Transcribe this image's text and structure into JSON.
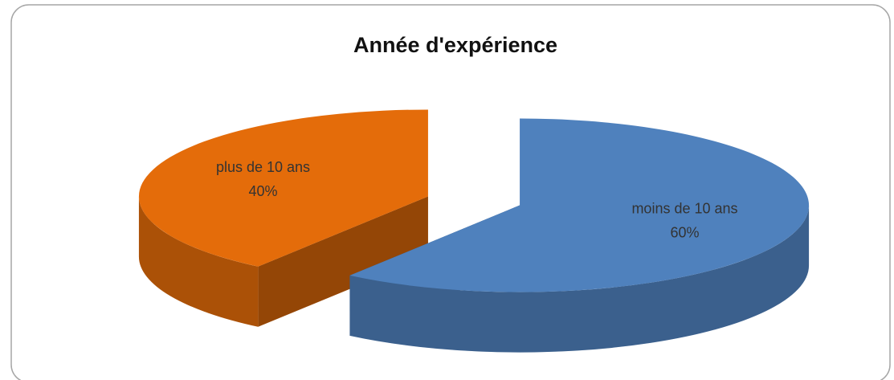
{
  "chart_data": {
    "type": "pie",
    "title": "Année d'expérience",
    "categories": [
      "moins de 10 ans",
      "plus de 10 ans"
    ],
    "values": [
      60,
      40
    ],
    "value_labels": [
      "60%",
      "40%"
    ],
    "colors": [
      "#4f81bd",
      "#e46c0a"
    ]
  }
}
